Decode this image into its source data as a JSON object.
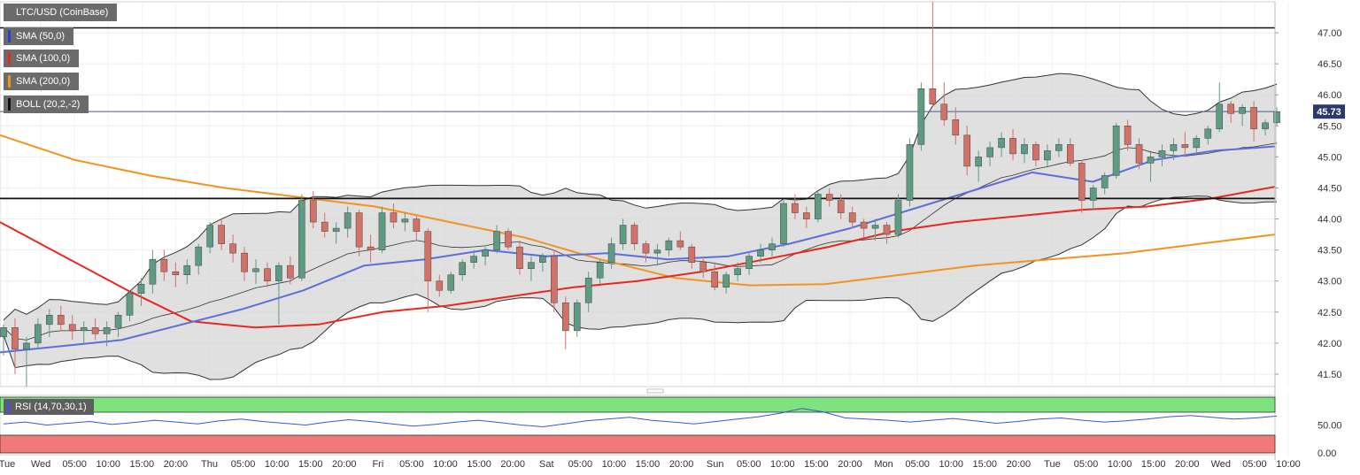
{
  "legend": {
    "symbol": "LTC/USD (CoinBase)",
    "sma50": "SMA (50,0)",
    "sma100": "SMA (100,0)",
    "sma200": "SMA (200,0)",
    "boll": "BOLL (20,2,-2)",
    "rsi": "RSI (14,70,30,1)"
  },
  "colors": {
    "sma50": "#5a6fdc",
    "sma100": "#e8281e",
    "sma200": "#f5921e",
    "candle_up": "#5e9b82",
    "candle_down": "#d27168",
    "band_fill": "#d6d6d6",
    "rsi_line": "#3d55d8",
    "rsi_over": "#7ee27e",
    "rsi_under": "#f07a7a"
  },
  "chart_data": {
    "type": "candlestick",
    "title": "LTC/USD (CoinBase)",
    "ylim": [
      41.3,
      47.5
    ],
    "y_ticks": [
      "41.50",
      "42.00",
      "42.50",
      "43.00",
      "43.50",
      "44.00",
      "44.50",
      "45.00",
      "45.50",
      "46.00",
      "46.50",
      "47.00"
    ],
    "x_ticks": [
      "Tue",
      "Wed",
      "05:00",
      "10:00",
      "15:00",
      "20:00",
      "Thu",
      "05:00",
      "10:00",
      "15:00",
      "20:00",
      "Fri",
      "05:00",
      "10:00",
      "15:00",
      "20:00",
      "Sat",
      "05:00",
      "10:00",
      "15:00",
      "20:00",
      "Sun",
      "05:00",
      "10:00",
      "15:00",
      "20:00",
      "Mon",
      "05:00",
      "10:00",
      "15:00",
      "20:00",
      "Tue",
      "05:00",
      "10:00",
      "15:00",
      "20:00",
      "Wed",
      "05:00",
      "10:00"
    ],
    "last_price": "45.73",
    "horizontal_lines": [
      47.08,
      44.33,
      45.73
    ],
    "series": [
      {
        "name": "SMA (200,0)",
        "values": [
          45.35,
          44.95,
          44.7,
          44.5,
          44.35,
          44.2,
          43.95,
          43.7,
          43.35,
          43.05,
          42.93,
          42.95,
          43.1,
          43.25,
          43.35,
          43.45,
          43.6,
          43.75
        ]
      },
      {
        "name": "SMA (100,0)",
        "values": [
          43.95,
          43.4,
          42.85,
          42.35,
          42.25,
          42.3,
          42.5,
          42.6,
          42.75,
          42.9,
          43.0,
          43.15,
          43.35,
          43.55,
          43.8,
          43.95,
          44.05,
          44.15,
          44.2,
          44.33,
          44.52
        ]
      },
      {
        "name": "SMA (50,0)",
        "values": [
          41.85,
          41.95,
          42.05,
          42.3,
          42.55,
          42.85,
          43.25,
          43.35,
          43.5,
          43.4,
          43.45,
          43.35,
          43.4,
          43.6,
          43.85,
          44.15,
          44.45,
          44.75,
          44.6,
          44.95,
          45.1,
          45.17
        ]
      },
      {
        "name": "BOLL (20,2,-2)",
        "values": []
      }
    ],
    "candles": [
      {
        "o": 42.1,
        "h": 42.3,
        "l": 41.8,
        "c": 42.25
      },
      {
        "o": 42.25,
        "h": 42.4,
        "l": 41.5,
        "c": 41.9
      },
      {
        "o": 41.9,
        "h": 42.1,
        "l": 41.3,
        "c": 42.0
      },
      {
        "o": 42.0,
        "h": 42.4,
        "l": 41.9,
        "c": 42.3
      },
      {
        "o": 42.3,
        "h": 42.55,
        "l": 42.1,
        "c": 42.45
      },
      {
        "o": 42.45,
        "h": 42.6,
        "l": 42.2,
        "c": 42.3
      },
      {
        "o": 42.3,
        "h": 42.45,
        "l": 42.05,
        "c": 42.2
      },
      {
        "o": 42.2,
        "h": 42.35,
        "l": 42.0,
        "c": 42.25
      },
      {
        "o": 42.25,
        "h": 42.4,
        "l": 42.05,
        "c": 42.15
      },
      {
        "o": 42.15,
        "h": 42.35,
        "l": 41.95,
        "c": 42.25
      },
      {
        "o": 42.25,
        "h": 42.5,
        "l": 42.1,
        "c": 42.45
      },
      {
        "o": 42.45,
        "h": 42.85,
        "l": 42.35,
        "c": 42.8
      },
      {
        "o": 42.8,
        "h": 43.05,
        "l": 42.6,
        "c": 42.95
      },
      {
        "o": 42.95,
        "h": 43.5,
        "l": 42.8,
        "c": 43.35
      },
      {
        "o": 43.35,
        "h": 43.5,
        "l": 43.0,
        "c": 43.15
      },
      {
        "o": 43.15,
        "h": 43.3,
        "l": 42.9,
        "c": 43.1
      },
      {
        "o": 43.1,
        "h": 43.35,
        "l": 42.95,
        "c": 43.25
      },
      {
        "o": 43.25,
        "h": 43.6,
        "l": 43.1,
        "c": 43.55
      },
      {
        "o": 43.55,
        "h": 43.95,
        "l": 43.45,
        "c": 43.9
      },
      {
        "o": 43.9,
        "h": 44.0,
        "l": 43.5,
        "c": 43.6
      },
      {
        "o": 43.6,
        "h": 43.75,
        "l": 43.3,
        "c": 43.45
      },
      {
        "o": 43.45,
        "h": 43.55,
        "l": 43.0,
        "c": 43.15
      },
      {
        "o": 43.15,
        "h": 43.35,
        "l": 42.95,
        "c": 43.2
      },
      {
        "o": 43.2,
        "h": 43.3,
        "l": 42.9,
        "c": 43.0
      },
      {
        "o": 43.0,
        "h": 43.3,
        "l": 42.3,
        "c": 43.25
      },
      {
        "o": 43.25,
        "h": 43.4,
        "l": 42.95,
        "c": 43.05
      },
      {
        "o": 43.05,
        "h": 44.4,
        "l": 43.0,
        "c": 44.3
      },
      {
        "o": 44.3,
        "h": 44.45,
        "l": 43.85,
        "c": 43.95
      },
      {
        "o": 43.95,
        "h": 44.1,
        "l": 43.7,
        "c": 43.8
      },
      {
        "o": 43.8,
        "h": 43.95,
        "l": 43.6,
        "c": 43.85
      },
      {
        "o": 43.85,
        "h": 44.2,
        "l": 43.7,
        "c": 44.1
      },
      {
        "o": 44.1,
        "h": 44.15,
        "l": 43.4,
        "c": 43.55
      },
      {
        "o": 43.55,
        "h": 43.75,
        "l": 43.3,
        "c": 43.5
      },
      {
        "o": 43.5,
        "h": 44.2,
        "l": 43.45,
        "c": 44.1
      },
      {
        "o": 44.1,
        "h": 44.25,
        "l": 43.85,
        "c": 43.95
      },
      {
        "o": 43.95,
        "h": 44.1,
        "l": 43.8,
        "c": 44.0
      },
      {
        "o": 44.0,
        "h": 44.05,
        "l": 43.65,
        "c": 43.8
      },
      {
        "o": 43.8,
        "h": 43.85,
        "l": 42.5,
        "c": 43.0
      },
      {
        "o": 43.0,
        "h": 43.1,
        "l": 42.75,
        "c": 42.85
      },
      {
        "o": 42.85,
        "h": 43.15,
        "l": 42.8,
        "c": 43.1
      },
      {
        "o": 43.1,
        "h": 43.35,
        "l": 43.0,
        "c": 43.3
      },
      {
        "o": 43.3,
        "h": 43.5,
        "l": 43.2,
        "c": 43.4
      },
      {
        "o": 43.4,
        "h": 43.55,
        "l": 43.25,
        "c": 43.5
      },
      {
        "o": 43.5,
        "h": 43.9,
        "l": 43.45,
        "c": 43.8
      },
      {
        "o": 43.8,
        "h": 43.85,
        "l": 43.5,
        "c": 43.55
      },
      {
        "o": 43.55,
        "h": 43.65,
        "l": 43.1,
        "c": 43.2
      },
      {
        "o": 43.2,
        "h": 43.4,
        "l": 43.0,
        "c": 43.3
      },
      {
        "o": 43.3,
        "h": 43.45,
        "l": 43.15,
        "c": 43.4
      },
      {
        "o": 43.4,
        "h": 43.5,
        "l": 42.5,
        "c": 42.65
      },
      {
        "o": 42.65,
        "h": 42.75,
        "l": 41.9,
        "c": 42.2
      },
      {
        "o": 42.2,
        "h": 42.7,
        "l": 42.1,
        "c": 42.65
      },
      {
        "o": 42.65,
        "h": 43.15,
        "l": 42.5,
        "c": 43.05
      },
      {
        "o": 43.05,
        "h": 43.35,
        "l": 42.95,
        "c": 43.3
      },
      {
        "o": 43.3,
        "h": 43.7,
        "l": 43.2,
        "c": 43.6
      },
      {
        "o": 43.6,
        "h": 44.0,
        "l": 43.5,
        "c": 43.9
      },
      {
        "o": 43.9,
        "h": 43.95,
        "l": 43.5,
        "c": 43.6
      },
      {
        "o": 43.6,
        "h": 43.65,
        "l": 43.3,
        "c": 43.45
      },
      {
        "o": 43.45,
        "h": 43.6,
        "l": 43.25,
        "c": 43.5
      },
      {
        "o": 43.5,
        "h": 43.7,
        "l": 43.4,
        "c": 43.65
      },
      {
        "o": 43.65,
        "h": 43.8,
        "l": 43.5,
        "c": 43.55
      },
      {
        "o": 43.55,
        "h": 43.6,
        "l": 43.2,
        "c": 43.3
      },
      {
        "o": 43.3,
        "h": 43.4,
        "l": 43.05,
        "c": 43.15
      },
      {
        "o": 43.15,
        "h": 43.3,
        "l": 42.85,
        "c": 42.9
      },
      {
        "o": 42.9,
        "h": 43.15,
        "l": 42.8,
        "c": 43.1
      },
      {
        "o": 43.1,
        "h": 43.3,
        "l": 43.0,
        "c": 43.2
      },
      {
        "o": 43.2,
        "h": 43.45,
        "l": 43.1,
        "c": 43.4
      },
      {
        "o": 43.4,
        "h": 43.6,
        "l": 43.3,
        "c": 43.5
      },
      {
        "o": 43.5,
        "h": 43.7,
        "l": 43.4,
        "c": 43.6
      },
      {
        "o": 43.6,
        "h": 44.3,
        "l": 43.55,
        "c": 44.25
      },
      {
        "o": 44.25,
        "h": 44.4,
        "l": 44.0,
        "c": 44.1
      },
      {
        "o": 44.1,
        "h": 44.2,
        "l": 43.85,
        "c": 44.0
      },
      {
        "o": 44.0,
        "h": 44.45,
        "l": 43.95,
        "c": 44.4
      },
      {
        "o": 44.4,
        "h": 44.5,
        "l": 44.2,
        "c": 44.3
      },
      {
        "o": 44.3,
        "h": 44.4,
        "l": 44.0,
        "c": 44.1
      },
      {
        "o": 44.1,
        "h": 44.2,
        "l": 43.85,
        "c": 43.95
      },
      {
        "o": 43.95,
        "h": 44.0,
        "l": 43.7,
        "c": 43.85
      },
      {
        "o": 43.85,
        "h": 44.0,
        "l": 43.65,
        "c": 43.9
      },
      {
        "o": 43.9,
        "h": 43.95,
        "l": 43.6,
        "c": 43.75
      },
      {
        "o": 43.75,
        "h": 44.4,
        "l": 43.7,
        "c": 44.3
      },
      {
        "o": 44.3,
        "h": 45.3,
        "l": 44.2,
        "c": 45.2
      },
      {
        "o": 45.2,
        "h": 46.2,
        "l": 45.1,
        "c": 46.1
      },
      {
        "o": 46.1,
        "h": 47.5,
        "l": 45.8,
        "c": 45.85
      },
      {
        "o": 45.85,
        "h": 46.2,
        "l": 45.5,
        "c": 45.6
      },
      {
        "o": 45.6,
        "h": 45.8,
        "l": 45.2,
        "c": 45.35
      },
      {
        "o": 45.35,
        "h": 45.5,
        "l": 44.7,
        "c": 44.85
      },
      {
        "o": 44.85,
        "h": 45.1,
        "l": 44.6,
        "c": 45.0
      },
      {
        "o": 45.0,
        "h": 45.25,
        "l": 44.85,
        "c": 45.15
      },
      {
        "o": 45.15,
        "h": 45.4,
        "l": 45.0,
        "c": 45.3
      },
      {
        "o": 45.3,
        "h": 45.45,
        "l": 44.95,
        "c": 45.05
      },
      {
        "o": 45.05,
        "h": 45.3,
        "l": 44.9,
        "c": 45.2
      },
      {
        "o": 45.2,
        "h": 45.25,
        "l": 44.85,
        "c": 44.95
      },
      {
        "o": 44.95,
        "h": 45.2,
        "l": 44.85,
        "c": 45.1
      },
      {
        "o": 45.1,
        "h": 45.3,
        "l": 45.0,
        "c": 45.2
      },
      {
        "o": 45.2,
        "h": 45.3,
        "l": 44.85,
        "c": 44.9
      },
      {
        "o": 44.9,
        "h": 44.95,
        "l": 44.1,
        "c": 44.3
      },
      {
        "o": 44.3,
        "h": 44.55,
        "l": 44.15,
        "c": 44.5
      },
      {
        "o": 44.5,
        "h": 44.75,
        "l": 44.4,
        "c": 44.7
      },
      {
        "o": 44.7,
        "h": 45.55,
        "l": 44.65,
        "c": 45.5
      },
      {
        "o": 45.5,
        "h": 45.6,
        "l": 45.1,
        "c": 45.2
      },
      {
        "o": 45.2,
        "h": 45.3,
        "l": 44.8,
        "c": 44.9
      },
      {
        "o": 44.9,
        "h": 45.1,
        "l": 44.6,
        "c": 45.0
      },
      {
        "o": 45.0,
        "h": 45.2,
        "l": 44.85,
        "c": 45.1
      },
      {
        "o": 45.1,
        "h": 45.3,
        "l": 44.95,
        "c": 45.2
      },
      {
        "o": 45.2,
        "h": 45.4,
        "l": 45.0,
        "c": 45.15
      },
      {
        "o": 45.15,
        "h": 45.35,
        "l": 45.05,
        "c": 45.3
      },
      {
        "o": 45.3,
        "h": 45.5,
        "l": 45.2,
        "c": 45.45
      },
      {
        "o": 45.45,
        "h": 46.2,
        "l": 45.4,
        "c": 45.85
      },
      {
        "o": 45.85,
        "h": 45.9,
        "l": 45.55,
        "c": 45.7
      },
      {
        "o": 45.7,
        "h": 45.85,
        "l": 45.5,
        "c": 45.8
      },
      {
        "o": 45.8,
        "h": 45.9,
        "l": 45.25,
        "c": 45.45
      },
      {
        "o": 45.45,
        "h": 45.6,
        "l": 45.35,
        "c": 45.55
      },
      {
        "o": 45.55,
        "h": 45.8,
        "l": 45.5,
        "c": 45.73
      }
    ],
    "rsi": {
      "levels": [
        "50.00",
        "0.00"
      ],
      "values": [
        52,
        55,
        50,
        53,
        56,
        51,
        54,
        58,
        55,
        52,
        57,
        60,
        56,
        53,
        50,
        55,
        59,
        56,
        52,
        48,
        51,
        55,
        58,
        54,
        50,
        47,
        52,
        57,
        60,
        63,
        58,
        55,
        52,
        56,
        60,
        64,
        70,
        78,
        72,
        62,
        60,
        58,
        55,
        58,
        61,
        57,
        53,
        56,
        60,
        62,
        58,
        55,
        57,
        60,
        64,
        66,
        63,
        60,
        62,
        65
      ]
    }
  }
}
